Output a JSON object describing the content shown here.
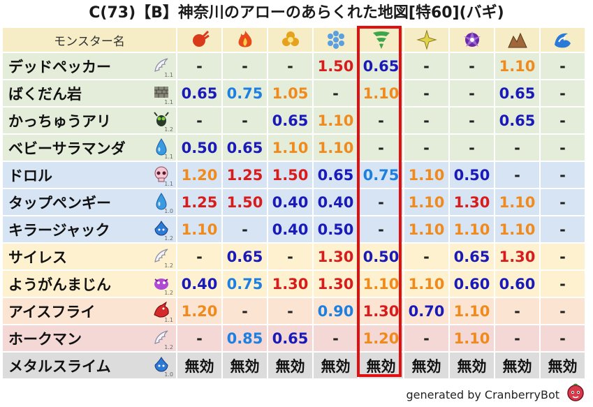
{
  "title": "C(73)【B】神奈川のアローのあらくれた地図[特60](バギ)",
  "header": {
    "name_label": "モンスター名",
    "columns": [
      {
        "icon": "fireball-spell-icon",
        "color": "#d83a1a"
      },
      {
        "icon": "fire-spell-icon",
        "color": "#e84a1a"
      },
      {
        "icon": "explosion-spell-icon",
        "color": "#e6a21c"
      },
      {
        "icon": "ice-spell-icon",
        "color": "#5aa0e0"
      },
      {
        "icon": "wind-spell-icon",
        "color": "#3ea64a"
      },
      {
        "icon": "lightning-spell-icon",
        "color": "#e0d24a"
      },
      {
        "icon": "dark-spell-icon",
        "color": "#6a2aa6"
      },
      {
        "icon": "earth-spell-icon",
        "color": "#a0683a"
      },
      {
        "icon": "water-spell-icon",
        "color": "#2a7ad6"
      }
    ]
  },
  "rows": [
    {
      "name": "デッドペッカー",
      "icon": "wing-icon",
      "level": "1.1",
      "color": "green",
      "values": [
        "-",
        "-",
        "-",
        "1.50",
        "0.65",
        "-",
        "-",
        "1.10",
        "-"
      ],
      "classes": [
        "none",
        "none",
        "none",
        "red",
        "blue",
        "none",
        "none",
        "orange",
        "none"
      ]
    },
    {
      "name": "ばくだん岩",
      "icon": "brick-icon",
      "level": "1.1",
      "color": "green",
      "values": [
        "0.65",
        "0.75",
        "1.05",
        "-",
        "1.10",
        "-",
        "-",
        "0.65",
        "-"
      ],
      "classes": [
        "blue",
        "lblue",
        "orange",
        "none",
        "orange",
        "none",
        "none",
        "blue",
        "none"
      ]
    },
    {
      "name": "かっちゅうアリ",
      "icon": "bug-icon",
      "level": "1.2",
      "color": "green",
      "values": [
        "-",
        "-",
        "0.65",
        "1.10",
        "-",
        "-",
        "-",
        "0.65",
        "-"
      ],
      "classes": [
        "none",
        "none",
        "blue",
        "orange",
        "none",
        "none",
        "none",
        "blue",
        "none"
      ]
    },
    {
      "name": "ベビーサラマンダ",
      "icon": "droplet-icon",
      "level": "1.1",
      "color": "green",
      "values": [
        "0.50",
        "0.65",
        "1.10",
        "1.10",
        "-",
        "-",
        "-",
        "-",
        "-"
      ],
      "classes": [
        "blue",
        "blue",
        "orange",
        "orange",
        "none",
        "none",
        "none",
        "none",
        "none"
      ]
    },
    {
      "name": "ドロル",
      "icon": "skull-icon",
      "level": "1.1",
      "color": "blue",
      "values": [
        "1.20",
        "1.25",
        "1.50",
        "0.65",
        "0.75",
        "1.10",
        "0.50",
        "-",
        "-"
      ],
      "classes": [
        "orange",
        "red",
        "red",
        "blue",
        "lblue",
        "orange",
        "blue",
        "none",
        "none"
      ]
    },
    {
      "name": "タップペンギー",
      "icon": "droplet-icon",
      "level": "1.0",
      "color": "blue",
      "values": [
        "1.25",
        "1.50",
        "0.40",
        "0.40",
        "-",
        "1.10",
        "1.30",
        "1.10",
        "-"
      ],
      "classes": [
        "red",
        "red",
        "blue",
        "blue",
        "none",
        "orange",
        "red",
        "orange",
        "none"
      ]
    },
    {
      "name": "キラージャック",
      "icon": "slime-icon",
      "level": "1.2",
      "color": "blue",
      "values": [
        "1.10",
        "-",
        "0.40",
        "0.50",
        "-",
        "1.10",
        "1.10",
        "1.10",
        "-"
      ],
      "classes": [
        "orange",
        "none",
        "blue",
        "blue",
        "none",
        "orange",
        "orange",
        "orange",
        "none"
      ]
    },
    {
      "name": "サイレス",
      "icon": "wing-icon",
      "level": "1.2",
      "color": "yellow",
      "values": [
        "-",
        "0.65",
        "-",
        "1.30",
        "0.50",
        "-",
        "0.65",
        "1.30",
        "-"
      ],
      "classes": [
        "none",
        "blue",
        "none",
        "red",
        "blue",
        "none",
        "blue",
        "red",
        "none"
      ]
    },
    {
      "name": "ようがんまじん",
      "icon": "beast-icon",
      "level": "1.2",
      "color": "yellow",
      "values": [
        "0.40",
        "0.75",
        "1.30",
        "1.30",
        "1.10",
        "1.10",
        "0.60",
        "0.60",
        "-"
      ],
      "classes": [
        "blue",
        "lblue",
        "red",
        "red",
        "orange",
        "orange",
        "blue",
        "blue",
        "none"
      ]
    },
    {
      "name": "アイスフライ",
      "icon": "dragon-icon",
      "level": "1.1",
      "color": "orange",
      "values": [
        "1.20",
        "-",
        "-",
        "0.90",
        "1.30",
        "0.70",
        "1.10",
        "-",
        "-"
      ],
      "classes": [
        "orange",
        "none",
        "none",
        "lblue",
        "red",
        "blue",
        "orange",
        "none",
        "none"
      ]
    },
    {
      "name": "ホークマン",
      "icon": "wing-icon",
      "level": "1.2",
      "color": "pink",
      "values": [
        "-",
        "0.85",
        "0.65",
        "-",
        "1.20",
        "-",
        "1.10",
        "-",
        "-"
      ],
      "classes": [
        "none",
        "lblue",
        "blue",
        "none",
        "orange",
        "none",
        "orange",
        "none",
        "none"
      ]
    },
    {
      "name": "メタルスライム",
      "icon": "slime-icon",
      "level": "1.0",
      "color": "gray",
      "values": [
        "無効",
        "無効",
        "無効",
        "無効",
        "無効",
        "無効",
        "無効",
        "無効",
        "無効"
      ],
      "classes": [
        "black",
        "black",
        "black",
        "black",
        "black",
        "black",
        "black",
        "black",
        "black"
      ]
    }
  ],
  "footer": {
    "text": "generated by CranberryBot",
    "icon": "cranberry-bot-icon"
  },
  "colors": {
    "highlight": "#e01010",
    "header_bg": "#f6ecc6"
  }
}
